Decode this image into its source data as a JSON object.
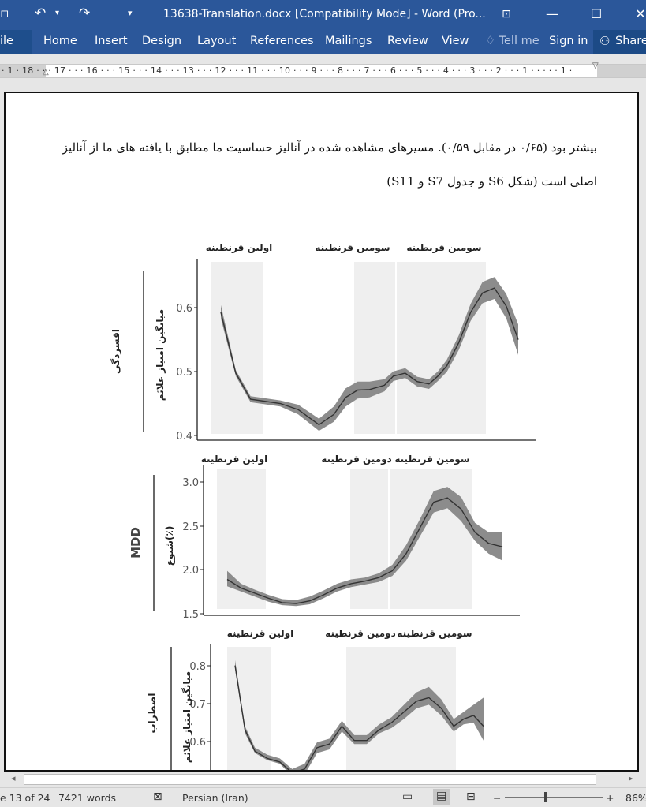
{
  "window": {
    "title": "13638-Translation.docx [Compatibility Mode] - Word (Pro...",
    "save_icon": "save-icon",
    "undo_icon": "undo-icon",
    "redo_icon": "redo-icon",
    "customize_icon": "customize-qat-icon",
    "ribbon_display_icon": "ribbon-display-icon",
    "minimize_glyph": "—",
    "maximize_glyph": "☐",
    "close_glyph": "✕"
  },
  "ribbon": {
    "file": "ile",
    "tabs": [
      "Home",
      "Insert",
      "Design",
      "Layout",
      "References",
      "Mailings",
      "Review",
      "View"
    ],
    "tell_me": "Tell me",
    "sign_in": "Sign in",
    "share": "Share"
  },
  "ruler": {
    "ticks": "· 1 · 18 · · · 17 · · · 16 · · · 15 · · · 14 · · · 13 · · · 12 · · · 11 · · · 10 · · · 9 · · · 8 · · · 7 · · · 6 · · · 5 · · · 4 · · · 3 · · · 2 · · · 1 · · · · · 1 ·"
  },
  "document": {
    "para_line1": "بیشتر بود (۰/۶۵ در مقابل ۰/۵۹). مسیرهای مشاهده شده در آنالیز حساسیت ما مطابق با یافته های ما از آنالیز",
    "para_line2": "اصلی است (شکل S6 و جدول S7 و S11)"
  },
  "figure": {
    "panels": [
      {
        "row_label": "افسردگی",
        "y_label": "میانگین امتیاز علائم",
        "quarantines": [
          "اولین قرنطینه",
          "سومین قرنطینه",
          "سومین قرنطینه"
        ],
        "y_ticks": [
          "0.6",
          "0.5",
          "0.4"
        ]
      },
      {
        "row_label": "MDD",
        "y_label": "شیوع(٪)",
        "quarantines": [
          "اولین قرنطینه",
          "دومین قرنطینه",
          "سومین قرنطینه"
        ],
        "y_ticks": [
          "3.0",
          "2.5",
          "2.0",
          "1.5"
        ]
      },
      {
        "row_label": "اضطراب",
        "y_label": "میانگین امتیاز علائم",
        "quarantines": [
          "اولین قرنطینه",
          "دومین قرنطینه",
          "سومین قرنطینه"
        ],
        "y_ticks": [
          "0.8",
          "0.7",
          "0.6"
        ]
      }
    ]
  },
  "chart_data": [
    {
      "type": "line",
      "title": "",
      "row_label": "افسردگی",
      "ylabel": "میانگین امتیاز علائم",
      "ylim": [
        0.4,
        0.67
      ],
      "y_ticks": [
        0.6,
        0.5,
        0.4
      ],
      "x": [
        0.0,
        0.05,
        0.1,
        0.2,
        0.26,
        0.33,
        0.38,
        0.42,
        0.46,
        0.5,
        0.55,
        0.58,
        0.62,
        0.66,
        0.7,
        0.73,
        0.76,
        0.8,
        0.84,
        0.88,
        0.92,
        0.96,
        1.0
      ],
      "series": [
        {
          "values": [
            0.6,
            0.5,
            0.457,
            0.45,
            0.44,
            0.415,
            0.432,
            0.46,
            0.472,
            0.473,
            0.48,
            0.495,
            0.5,
            0.486,
            0.482,
            0.495,
            0.512,
            0.55,
            0.6,
            0.632,
            0.64,
            0.61,
            0.555
          ],
          "lower": [
            0.59,
            0.495,
            0.452,
            0.445,
            0.432,
            0.405,
            0.42,
            0.445,
            0.458,
            0.46,
            0.47,
            0.487,
            0.492,
            0.478,
            0.474,
            0.487,
            0.502,
            0.538,
            0.586,
            0.615,
            0.622,
            0.59,
            0.53
          ],
          "upper": [
            0.612,
            0.505,
            0.462,
            0.455,
            0.448,
            0.425,
            0.445,
            0.475,
            0.486,
            0.486,
            0.49,
            0.503,
            0.508,
            0.494,
            0.49,
            0.503,
            0.522,
            0.562,
            0.614,
            0.65,
            0.658,
            0.63,
            0.58
          ]
        }
      ],
      "shaded_periods": [
        [
          0.0,
          0.17
        ],
        [
          0.46,
          0.59
        ],
        [
          0.6,
          0.86
        ]
      ]
    },
    {
      "type": "line",
      "title": "",
      "row_label": "MDD",
      "ylabel": "شیوع(٪)",
      "ylim": [
        1.5,
        3.1
      ],
      "y_ticks": [
        3.0,
        2.5,
        2.0,
        1.5
      ],
      "x": [
        0.0,
        0.05,
        0.1,
        0.15,
        0.2,
        0.25,
        0.3,
        0.35,
        0.4,
        0.45,
        0.5,
        0.55,
        0.6,
        0.65,
        0.7,
        0.75,
        0.8,
        0.85,
        0.9,
        0.95,
        1.0
      ],
      "series": [
        {
          "values": [
            1.9,
            1.8,
            1.74,
            1.68,
            1.63,
            1.62,
            1.65,
            1.72,
            1.8,
            1.85,
            1.88,
            1.92,
            2.0,
            2.2,
            2.5,
            2.8,
            2.85,
            2.72,
            2.45,
            2.32,
            2.28
          ],
          "lower": [
            1.82,
            1.76,
            1.7,
            1.64,
            1.6,
            1.59,
            1.61,
            1.68,
            1.76,
            1.81,
            1.84,
            1.87,
            1.94,
            2.12,
            2.4,
            2.68,
            2.73,
            2.58,
            2.35,
            2.2,
            2.12
          ],
          "upper": [
            2.0,
            1.85,
            1.78,
            1.72,
            1.67,
            1.66,
            1.7,
            1.77,
            1.85,
            1.9,
            1.92,
            1.97,
            2.07,
            2.3,
            2.6,
            2.93,
            2.98,
            2.86,
            2.56,
            2.45,
            2.45
          ]
        }
      ],
      "shaded_periods": [
        [
          0.0,
          0.17
        ],
        [
          0.43,
          0.58
        ],
        [
          0.58,
          0.89
        ]
      ]
    },
    {
      "type": "line",
      "title": "",
      "row_label": "اضطراب",
      "ylabel": "میانگین امتیاز علائم",
      "ylim": [
        0.52,
        0.86
      ],
      "y_ticks": [
        0.8,
        0.7,
        0.6
      ],
      "x": [
        0.0,
        0.04,
        0.08,
        0.13,
        0.18,
        0.23,
        0.28,
        0.33,
        0.38,
        0.43,
        0.48,
        0.53,
        0.58,
        0.63,
        0.68,
        0.73,
        0.78,
        0.83,
        0.88,
        0.92,
        0.96,
        1.0
      ],
      "series": [
        {
          "values": [
            0.83,
            0.65,
            0.59,
            0.57,
            0.56,
            0.53,
            0.54,
            0.6,
            0.61,
            0.66,
            0.62,
            0.62,
            0.65,
            0.67,
            0.7,
            0.73,
            0.74,
            0.71,
            0.66,
            0.68,
            0.69,
            0.66
          ],
          "lower": [
            0.82,
            0.64,
            0.585,
            0.565,
            0.555,
            0.52,
            0.525,
            0.585,
            0.595,
            0.645,
            0.61,
            0.61,
            0.64,
            0.655,
            0.68,
            0.71,
            0.72,
            0.69,
            0.645,
            0.665,
            0.67,
            0.62
          ],
          "upper": [
            0.845,
            0.66,
            0.6,
            0.58,
            0.57,
            0.54,
            0.555,
            0.615,
            0.625,
            0.675,
            0.635,
            0.635,
            0.665,
            0.685,
            0.72,
            0.755,
            0.77,
            0.735,
            0.68,
            0.7,
            0.72,
            0.74
          ]
        }
      ],
      "shaded_periods": [
        [
          0.0,
          0.16
        ],
        [
          0.46,
          0.57
        ],
        [
          0.57,
          0.85
        ]
      ]
    }
  ],
  "statusbar": {
    "page": "e 13 of 24",
    "words": "7421 words",
    "proofing_icon": "proofing-icon",
    "language": "Persian (Iran)",
    "read_mode_icon": "read-mode-icon",
    "print_layout_icon": "print-layout-icon",
    "web_layout_icon": "web-layout-icon",
    "zoom_out": "−",
    "zoom_in": "+",
    "zoom": "86%"
  },
  "colors": {
    "ribbon": "#2b579a",
    "band": "#efefef",
    "ci": "#8c8c8c",
    "line": "#333333"
  }
}
